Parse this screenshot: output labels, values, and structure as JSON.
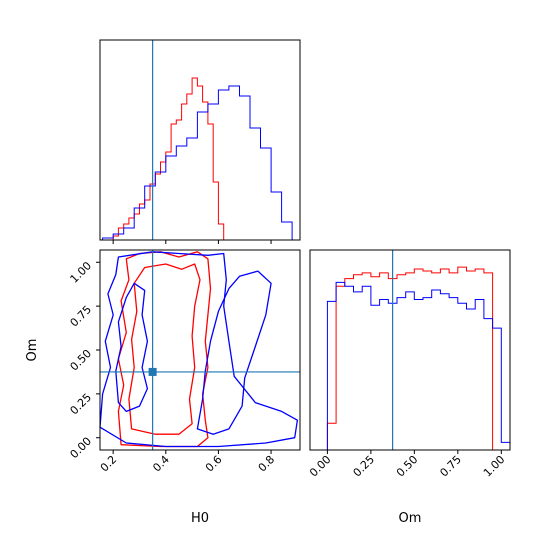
{
  "colors": {
    "red": "#ff0000",
    "blue": "#0000ff",
    "truth": "#1f77b4"
  },
  "chart_data": {
    "type": "corner",
    "parameters": [
      "H0",
      "Om"
    ],
    "truth": {
      "H0": 0.35,
      "Om": 0.375
    },
    "panels": [
      {
        "id": "h0-hist",
        "type": "histogram",
        "xlim": [
          0.15,
          0.91
        ],
        "ylim": [
          0,
          1
        ],
        "truth_x": 0.35,
        "series": [
          {
            "name": "",
            "color": "red",
            "edges": [
              0.2,
              0.22,
              0.24,
              0.26,
              0.28,
              0.3,
              0.32,
              0.34,
              0.36,
              0.38,
              0.4,
              0.42,
              0.44,
              0.46,
              0.48,
              0.5,
              0.52,
              0.54,
              0.56,
              0.58,
              0.6,
              0.62
            ],
            "values": [
              0.02,
              0.06,
              0.08,
              0.11,
              0.13,
              0.18,
              0.2,
              0.28,
              0.33,
              0.39,
              0.44,
              0.58,
              0.6,
              0.68,
              0.73,
              0.81,
              0.77,
              0.69,
              0.58,
              0.29,
              0.08
            ]
          },
          {
            "name": "",
            "color": "blue",
            "edges": [
              0.16,
              0.2,
              0.24,
              0.28,
              0.32,
              0.36,
              0.4,
              0.44,
              0.48,
              0.52,
              0.56,
              0.6,
              0.64,
              0.68,
              0.72,
              0.76,
              0.8,
              0.84,
              0.88
            ],
            "values": [
              0.01,
              0.03,
              0.06,
              0.16,
              0.27,
              0.34,
              0.42,
              0.47,
              0.51,
              0.64,
              0.68,
              0.75,
              0.77,
              0.72,
              0.56,
              0.46,
              0.24,
              0.09
            ]
          }
        ]
      },
      {
        "id": "h0-om-contour",
        "type": "contour",
        "xlim": [
          0.15,
          0.91
        ],
        "ylim": [
          -0.07,
          1.07
        ],
        "truth_point": [
          0.35,
          0.375
        ],
        "contours": [
          {
            "color": "red",
            "level": "outer",
            "points": [
              [
                0.23,
                -0.04
              ],
              [
                0.22,
                0.15
              ],
              [
                0.24,
                0.3
              ],
              [
                0.22,
                0.45
              ],
              [
                0.25,
                0.6
              ],
              [
                0.23,
                0.78
              ],
              [
                0.26,
                0.9
              ],
              [
                0.25,
                1.02
              ],
              [
                0.3,
                1.05
              ],
              [
                0.38,
                1.06
              ],
              [
                0.45,
                1.03
              ],
              [
                0.52,
                1.06
              ],
              [
                0.56,
                1.02
              ],
              [
                0.57,
                0.85
              ],
              [
                0.56,
                0.7
              ],
              [
                0.55,
                0.55
              ],
              [
                0.56,
                0.4
              ],
              [
                0.54,
                0.25
              ],
              [
                0.55,
                0.1
              ],
              [
                0.56,
                0.0
              ],
              [
                0.52,
                -0.05
              ],
              [
                0.38,
                -0.05
              ],
              [
                0.23,
                -0.04
              ]
            ]
          },
          {
            "color": "red",
            "level": "inner",
            "points": [
              [
                0.27,
                0.05
              ],
              [
                0.26,
                0.22
              ],
              [
                0.28,
                0.4
              ],
              [
                0.27,
                0.56
              ],
              [
                0.29,
                0.72
              ],
              [
                0.28,
                0.88
              ],
              [
                0.32,
                0.97
              ],
              [
                0.4,
                0.99
              ],
              [
                0.46,
                0.96
              ],
              [
                0.51,
                0.99
              ],
              [
                0.53,
                0.9
              ],
              [
                0.51,
                0.75
              ],
              [
                0.5,
                0.58
              ],
              [
                0.51,
                0.4
              ],
              [
                0.49,
                0.22
              ],
              [
                0.5,
                0.08
              ],
              [
                0.45,
                0.02
              ],
              [
                0.36,
                0.02
              ],
              [
                0.27,
                0.05
              ]
            ]
          },
          {
            "color": "blue",
            "level": "outer",
            "points": [
              [
                0.15,
                0.06
              ],
              [
                0.16,
                0.25
              ],
              [
                0.19,
                0.4
              ],
              [
                0.17,
                0.55
              ],
              [
                0.2,
                0.7
              ],
              [
                0.18,
                0.82
              ],
              [
                0.21,
                0.93
              ],
              [
                0.22,
                1.03
              ],
              [
                0.35,
                1.06
              ],
              [
                0.45,
                1.05
              ],
              [
                0.56,
                1.04
              ],
              [
                0.62,
                1.05
              ],
              [
                0.63,
                0.9
              ],
              [
                0.62,
                0.75
              ],
              [
                0.64,
                0.55
              ],
              [
                0.66,
                0.35
              ],
              [
                0.74,
                0.2
              ],
              [
                0.84,
                0.15
              ],
              [
                0.9,
                0.1
              ],
              [
                0.89,
                0.0
              ],
              [
                0.78,
                -0.03
              ],
              [
                0.6,
                -0.05
              ],
              [
                0.4,
                -0.05
              ],
              [
                0.25,
                -0.03
              ],
              [
                0.15,
                0.06
              ]
            ]
          },
          {
            "color": "blue",
            "level": "inner",
            "points": [
              [
                0.22,
                0.2
              ],
              [
                0.21,
                0.38
              ],
              [
                0.23,
                0.52
              ],
              [
                0.22,
                0.66
              ],
              [
                0.25,
                0.8
              ],
              [
                0.28,
                0.88
              ],
              [
                0.32,
                0.84
              ],
              [
                0.31,
                0.7
              ],
              [
                0.33,
                0.55
              ],
              [
                0.31,
                0.4
              ],
              [
                0.33,
                0.28
              ],
              [
                0.3,
                0.18
              ],
              [
                0.25,
                0.15
              ],
              [
                0.22,
                0.2
              ]
            ]
          },
          {
            "color": "blue",
            "level": "inner",
            "points": [
              [
                0.52,
                0.05
              ],
              [
                0.54,
                0.22
              ],
              [
                0.55,
                0.38
              ],
              [
                0.57,
                0.55
              ],
              [
                0.6,
                0.72
              ],
              [
                0.64,
                0.85
              ],
              [
                0.68,
                0.92
              ],
              [
                0.75,
                0.95
              ],
              [
                0.8,
                0.88
              ],
              [
                0.78,
                0.7
              ],
              [
                0.74,
                0.52
              ],
              [
                0.7,
                0.34
              ],
              [
                0.69,
                0.18
              ],
              [
                0.64,
                0.05
              ],
              [
                0.58,
                0.02
              ],
              [
                0.52,
                0.05
              ]
            ]
          }
        ]
      },
      {
        "id": "om-hist",
        "type": "histogram",
        "xlim": [
          -0.1,
          1.05
        ],
        "ylim": [
          0,
          1.05
        ],
        "truth_x": 0.375,
        "series": [
          {
            "name": "",
            "color": "red",
            "edges": [
              -0.05,
              0.0,
              0.05,
              0.1,
              0.15,
              0.2,
              0.25,
              0.3,
              0.35,
              0.4,
              0.45,
              0.5,
              0.55,
              0.6,
              0.65,
              0.7,
              0.75,
              0.8,
              0.85,
              0.9,
              0.95,
              1.0
            ],
            "values": [
              0.0,
              0.14,
              0.86,
              0.9,
              0.92,
              0.93,
              0.91,
              0.93,
              0.9,
              0.92,
              0.93,
              0.95,
              0.94,
              0.93,
              0.95,
              0.93,
              0.96,
              0.94,
              0.95,
              0.93,
              0.0
            ]
          },
          {
            "name": "",
            "color": "blue",
            "edges": [
              -0.05,
              0.0,
              0.05,
              0.1,
              0.15,
              0.2,
              0.25,
              0.3,
              0.35,
              0.4,
              0.45,
              0.5,
              0.55,
              0.6,
              0.65,
              0.7,
              0.75,
              0.8,
              0.85,
              0.9,
              0.95,
              1.0,
              1.05
            ],
            "values": [
              0.0,
              0.78,
              0.88,
              0.86,
              0.83,
              0.86,
              0.76,
              0.79,
              0.77,
              0.8,
              0.83,
              0.79,
              0.8,
              0.84,
              0.82,
              0.8,
              0.77,
              0.74,
              0.79,
              0.69,
              0.64,
              0.04
            ]
          }
        ]
      }
    ],
    "axes": {
      "bottom_left": {
        "xlabel": "H0",
        "ylabel": "Om",
        "xticks": [
          "0.2",
          "0.4",
          "0.6",
          "0.8"
        ],
        "yticks": [
          "0.00",
          "0.25",
          "0.50",
          "0.75",
          "1.00"
        ]
      },
      "bottom_right": {
        "xlabel": "Om",
        "xticks": [
          "0.00",
          "0.25",
          "0.50",
          "0.75",
          "1.00"
        ]
      }
    }
  }
}
